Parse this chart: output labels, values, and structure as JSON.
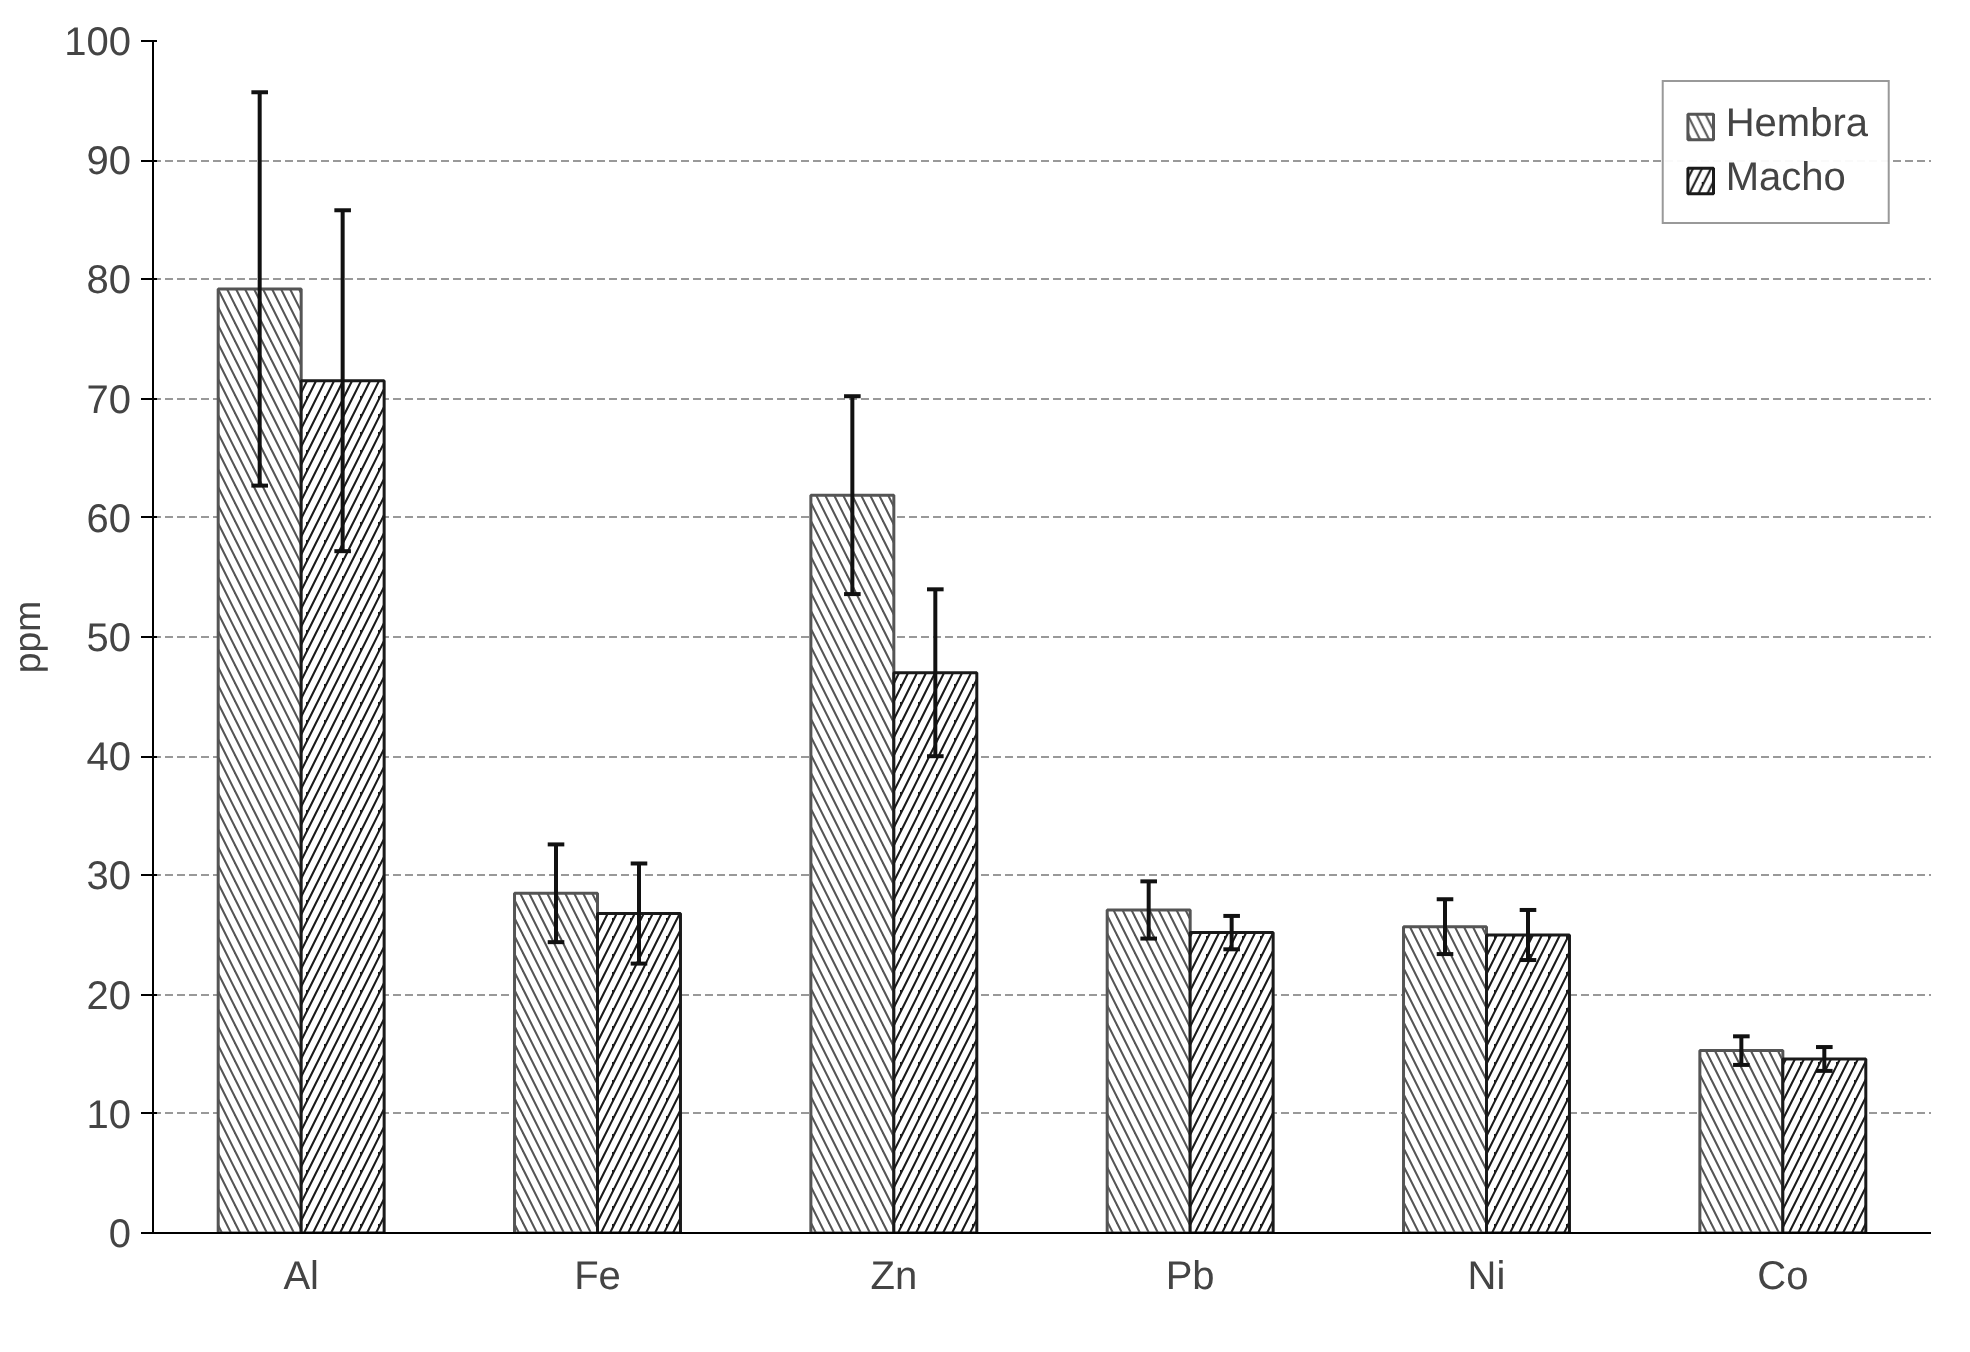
{
  "chart_data": {
    "type": "bar",
    "ylabel": "ppm",
    "categories": [
      "Al",
      "Fe",
      "Zn",
      "Pb",
      "Ni",
      "Co"
    ],
    "series": [
      {
        "name": "Hembra",
        "color": "#555555",
        "values": [
          79.2,
          28.5,
          61.9,
          27.1,
          25.7,
          15.3
        ],
        "errors": [
          16.5,
          4.1,
          8.3,
          2.4,
          2.3,
          1.2
        ]
      },
      {
        "name": "Macho",
        "color": "#1a1a1a",
        "values": [
          71.5,
          26.8,
          47.0,
          25.2,
          25.0,
          14.6
        ],
        "errors": [
          14.3,
          4.2,
          7.0,
          1.4,
          2.1,
          1.0
        ]
      }
    ],
    "ylim": [
      0,
      100
    ],
    "yticks": [
      0,
      10,
      20,
      30,
      40,
      50,
      60,
      70,
      80,
      90,
      100
    ],
    "grid": "y",
    "legend": "top right"
  }
}
